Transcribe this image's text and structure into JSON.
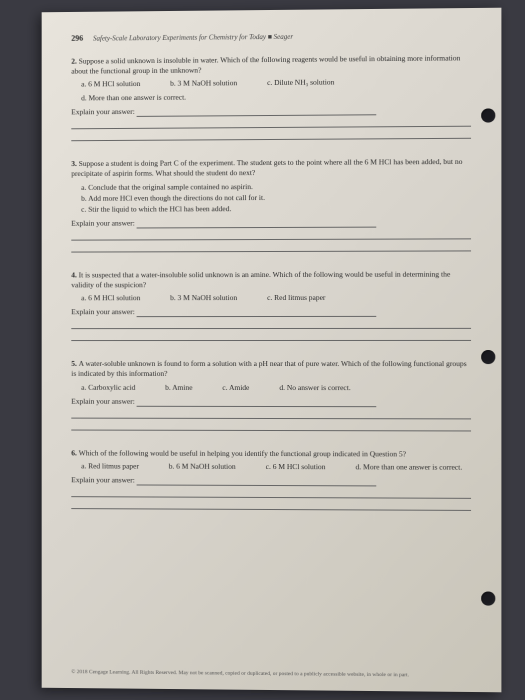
{
  "header": {
    "page_number": "296",
    "title": "Safety-Scale Laboratory Experiments for Chemistry for Today ■ Seager"
  },
  "questions": [
    {
      "num": "2.",
      "text": "Suppose a solid unknown is insoluble in water. Which of the following reagents would be useful in obtaining more information about the functional group in the unknown?",
      "layout": "row",
      "options": [
        {
          "label": "a.",
          "text": "6 M HCl solution"
        },
        {
          "label": "b.",
          "text": "3 M NaOH solution"
        },
        {
          "label": "c.",
          "text": "Dilute NH₃ solution"
        },
        {
          "label": "d.",
          "text": "More than one answer is correct."
        }
      ],
      "explain": "Explain your answer:",
      "lines": 3
    },
    {
      "num": "3.",
      "text": "Suppose a student is doing Part C of the experiment. The student gets to the point where all the 6 M HCl has been added, but no precipitate of aspirin forms. What should the student do next?",
      "layout": "stack",
      "options": [
        {
          "label": "a.",
          "text": "Conclude that the original sample contained no aspirin."
        },
        {
          "label": "b.",
          "text": "Add more HCl even though the directions do not call for it."
        },
        {
          "label": "c.",
          "text": "Stir the liquid to which the HCl has been added."
        }
      ],
      "explain": "Explain your answer:",
      "lines": 3
    },
    {
      "num": "4.",
      "text": "It is suspected that a water-insoluble solid unknown is an amine. Which of the following would be useful in determining the validity of the suspicion?",
      "layout": "row",
      "options": [
        {
          "label": "a.",
          "text": "6 M HCl solution"
        },
        {
          "label": "b.",
          "text": "3 M NaOH solution"
        },
        {
          "label": "c.",
          "text": "Red litmus paper"
        }
      ],
      "explain": "Explain your answer:",
      "lines": 3
    },
    {
      "num": "5.",
      "text": "A water-soluble unknown is found to form a solution with a pH near that of pure water. Which of the following functional groups is indicated by this information?",
      "layout": "row",
      "options": [
        {
          "label": "a.",
          "text": "Carboxylic acid"
        },
        {
          "label": "b.",
          "text": "Amine"
        },
        {
          "label": "c.",
          "text": "Amide"
        },
        {
          "label": "d.",
          "text": "No answer is correct."
        }
      ],
      "explain": "Explain your answer:",
      "lines": 3
    },
    {
      "num": "6.",
      "text": "Which of the following would be useful in helping you identify the functional group indicated in Question 5?",
      "layout": "row",
      "options": [
        {
          "label": "a.",
          "text": "Red litmus paper"
        },
        {
          "label": "b.",
          "text": "6 M NaOH solution"
        },
        {
          "label": "c.",
          "text": "6 M HCl solution"
        },
        {
          "label": "d.",
          "text": "More than one answer is correct."
        }
      ],
      "explain": "Explain your answer:",
      "lines": 3
    }
  ],
  "footer": "© 2018 Cengage Learning. All Rights Reserved. May not be scanned, copied or duplicated, or posted to a publicly accessible website, in whole or in part."
}
